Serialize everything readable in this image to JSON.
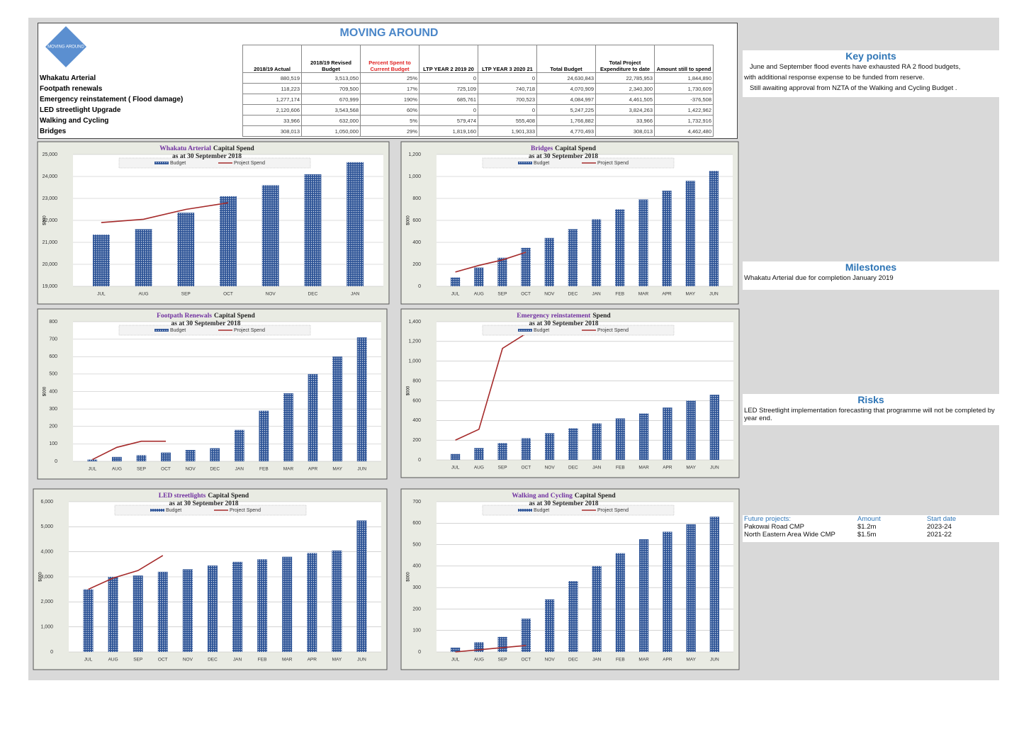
{
  "header": {
    "title": "MOVING AROUND",
    "logo_text": "MOVING AROUND"
  },
  "table": {
    "columns": [
      "2018/19 Actual",
      "2018/19 Revised Budget",
      "Percent Spent to Current Budget",
      "LTP YEAR 2 2019 20",
      "LTP YEAR 3 2020 21",
      "Total Budget",
      "Total Project Expenditure to date",
      "Amount still to spend"
    ],
    "rows": [
      [
        "Whakatu Arterial",
        "880,519",
        "3,513,050",
        "25%",
        "0",
        "0",
        "24,630,843",
        "22,785,953",
        "1,844,890"
      ],
      [
        "Footpath renewals",
        "118,223",
        "709,500",
        "17%",
        "725,109",
        "740,718",
        "4,070,909",
        "2,340,300",
        "1,730,609"
      ],
      [
        "Emergency reinstatement ( Flood damage)",
        "1,277,174",
        "670,999",
        "190%",
        "685,761",
        "700,523",
        "4,084,997",
        "4,461,505",
        "-376,508"
      ],
      [
        "LED streetlight Upgrade",
        "2,120,606",
        "3,543,568",
        "60%",
        "0",
        "0",
        "5,247,225",
        "3,824,263",
        "1,422,962"
      ],
      [
        "Walking and Cycling",
        "33,966",
        "632,000",
        "5%",
        "579,474",
        "555,408",
        "1,766,882",
        "33,966",
        "1,732,916"
      ],
      [
        "Bridges",
        "308,013",
        "1,050,000",
        "29%",
        "1,819,160",
        "1,901,333",
        "4,770,493",
        "308,013",
        "4,462,480"
      ]
    ]
  },
  "key_points": {
    "title": "Key points",
    "lines": [
      "June and September flood events have exhausted RA 2 flood budgets,",
      "with additional response expense to be funded from reserve.",
      "Still awaiting approval  from NZTA of the Walking and Cycling Budget ."
    ]
  },
  "milestones": {
    "title": "Milestones",
    "text": "Whakatu Arterial due for completion January 2019"
  },
  "risks": {
    "title": "Risks",
    "text": "LED Streetlight implementation forecasting that programme will not be completed by year end."
  },
  "future_projects": {
    "headers": [
      "Future projects:",
      "Amount",
      "Start date"
    ],
    "rows": [
      [
        "Pakowai Road CMP",
        "$1.2m",
        "2023-24"
      ],
      [
        "North Eastern Area Wide CMP",
        "$1.5m",
        "2021-22"
      ]
    ]
  },
  "chart_data": [
    {
      "type": "combo",
      "title_project": "Whakatu Arterial",
      "title": "Capital Spend",
      "subtitle": "as at 30 September 2018",
      "y_label": "$000",
      "categories": [
        "JUL",
        "AUG",
        "SEP",
        "OCT",
        "NOV",
        "DEC",
        "JAN"
      ],
      "ylim": [
        19000,
        25000
      ],
      "yticks": [
        {
          "value": 19000,
          "label": "19,000"
        },
        {
          "value": 20000,
          "label": "20,000"
        },
        {
          "value": 21000,
          "label": "21,000"
        },
        {
          "value": 22000,
          "label": "22,000"
        },
        {
          "value": 23000,
          "label": "23,000"
        },
        {
          "value": 24000,
          "label": "24,000"
        },
        {
          "value": 25000,
          "label": "25,000"
        }
      ],
      "grid": true,
      "series": [
        {
          "name": "Budget",
          "type": "bar",
          "color": "#2f5597",
          "values": [
            21350,
            21600,
            22350,
            23100,
            23600,
            24100,
            24650
          ]
        },
        {
          "name": "Project Spend",
          "type": "line",
          "color": "#a52a2a",
          "values": [
            21900,
            22050,
            22500,
            22800,
            null,
            null,
            null
          ]
        }
      ]
    },
    {
      "type": "combo",
      "title_project": "Bridges",
      "title": "Capital Spend",
      "subtitle": "as at 30 September 2018",
      "y_label": "$000",
      "categories": [
        "JUL",
        "AUG",
        "SEP",
        "OCT",
        "NOV",
        "DEC",
        "JAN",
        "FEB",
        "MAR",
        "APR",
        "MAY",
        "JUN"
      ],
      "ylim": [
        0,
        1200
      ],
      "yticks": [
        0,
        200,
        400,
        600,
        800,
        {
          "value": 1000,
          "label": "1,000"
        },
        {
          "value": 1200,
          "label": "1,200"
        }
      ],
      "grid": true,
      "series": [
        {
          "name": "Budget",
          "type": "bar",
          "color": "#2f5597",
          "values": [
            80,
            170,
            260,
            350,
            440,
            520,
            610,
            700,
            790,
            870,
            960,
            1050
          ]
        },
        {
          "name": "Project Spend",
          "type": "line",
          "color": "#a52a2a",
          "values": [
            130,
            190,
            240,
            310,
            null,
            null,
            null,
            null,
            null,
            null,
            null,
            null
          ]
        }
      ]
    },
    {
      "type": "combo",
      "title_project": "Footpath Renewals",
      "title": "Capital Spend",
      "subtitle": "as at 30 September 2018",
      "y_label": "$000",
      "categories": [
        "JUL",
        "AUG",
        "SEP",
        "OCT",
        "NOV",
        "DEC",
        "JAN",
        "FEB",
        "MAR",
        "APR",
        "MAY",
        "JUN"
      ],
      "ylim": [
        0,
        800
      ],
      "yticks": [
        0,
        100,
        200,
        300,
        400,
        500,
        600,
        700,
        800
      ],
      "grid": true,
      "series": [
        {
          "name": "Budget",
          "type": "bar",
          "color": "#2f5597",
          "values": [
            10,
            25,
            35,
            50,
            65,
            75,
            180,
            290,
            390,
            500,
            600,
            710
          ]
        },
        {
          "name": "Project Spend",
          "type": "line",
          "color": "#a52a2a",
          "values": [
            10,
            80,
            115,
            115,
            null,
            null,
            null,
            null,
            null,
            null,
            null,
            null
          ]
        }
      ]
    },
    {
      "type": "combo",
      "title_project": "Emergency reinstatement",
      "title": "Spend",
      "subtitle": "as at 30 September 2018",
      "y_label": "$000",
      "categories": [
        "JUL",
        "AUG",
        "SEP",
        "OCT",
        "NOV",
        "DEC",
        "JAN",
        "FEB",
        "MAR",
        "APR",
        "MAY",
        "JUN"
      ],
      "ylim": [
        0,
        1400
      ],
      "yticks": [
        0,
        200,
        400,
        600,
        800,
        {
          "value": 1000,
          "label": "1,000"
        },
        {
          "value": 1200,
          "label": "1,200"
        },
        {
          "value": 1400,
          "label": "1,400"
        }
      ],
      "grid": true,
      "series": [
        {
          "name": "Budget",
          "type": "bar",
          "color": "#2f5597",
          "values": [
            60,
            120,
            170,
            220,
            270,
            320,
            370,
            420,
            470,
            530,
            600,
            660
          ]
        },
        {
          "name": "Project Spend",
          "type": "line",
          "color": "#a52a2a",
          "values": [
            200,
            310,
            1130,
            1280,
            null,
            null,
            null,
            null,
            null,
            null,
            null,
            null
          ]
        }
      ]
    },
    {
      "type": "combo",
      "title_project": "LED streetlights",
      "title": "Capital Spend",
      "subtitle": "as at 30 September 2018",
      "y_label": "$000",
      "categories": [
        "JUL",
        "AUG",
        "SEP",
        "OCT",
        "NOV",
        "DEC",
        "JAN",
        "FEB",
        "MAR",
        "APR",
        "MAY",
        "JUN"
      ],
      "ylim": [
        0,
        6000
      ],
      "yticks": [
        0,
        {
          "value": 1000,
          "label": "1,000"
        },
        {
          "value": 2000,
          "label": "2,000"
        },
        {
          "value": 3000,
          "label": "3,000"
        },
        {
          "value": 4000,
          "label": "4,000"
        },
        {
          "value": 5000,
          "label": "5,000"
        },
        {
          "value": 6000,
          "label": "6,000"
        }
      ],
      "grid": true,
      "series": [
        {
          "name": "Budget",
          "type": "bar",
          "color": "#2f5597",
          "values": [
            2500,
            3000,
            3050,
            3200,
            3300,
            3450,
            3600,
            3700,
            3800,
            3950,
            4050,
            5250
          ]
        },
        {
          "name": "Project Spend",
          "type": "line",
          "color": "#a52a2a",
          "values": [
            2500,
            2950,
            3250,
            3850,
            null,
            null,
            null,
            null,
            null,
            null,
            null,
            null
          ]
        }
      ]
    },
    {
      "type": "combo",
      "title_project": "Walking and Cycling",
      "title": "Capital Spend",
      "subtitle": "as at 30 September 2018",
      "y_label": "$000",
      "categories": [
        "JUL",
        "AUG",
        "SEP",
        "OCT",
        "NOV",
        "DEC",
        "JAN",
        "FEB",
        "MAR",
        "APR",
        "MAY",
        "JUN"
      ],
      "ylim": [
        0,
        700
      ],
      "yticks": [
        0,
        100,
        200,
        300,
        400,
        500,
        600,
        700
      ],
      "grid": true,
      "series": [
        {
          "name": "Budget",
          "type": "bar",
          "color": "#2f5597",
          "values": [
            20,
            45,
            70,
            155,
            245,
            330,
            400,
            460,
            525,
            560,
            595,
            630
          ]
        },
        {
          "name": "Project Spend",
          "type": "line",
          "color": "#a52a2a",
          "values": [
            0,
            10,
            20,
            30,
            null,
            null,
            null,
            null,
            null,
            null,
            null,
            null
          ]
        }
      ]
    }
  ]
}
